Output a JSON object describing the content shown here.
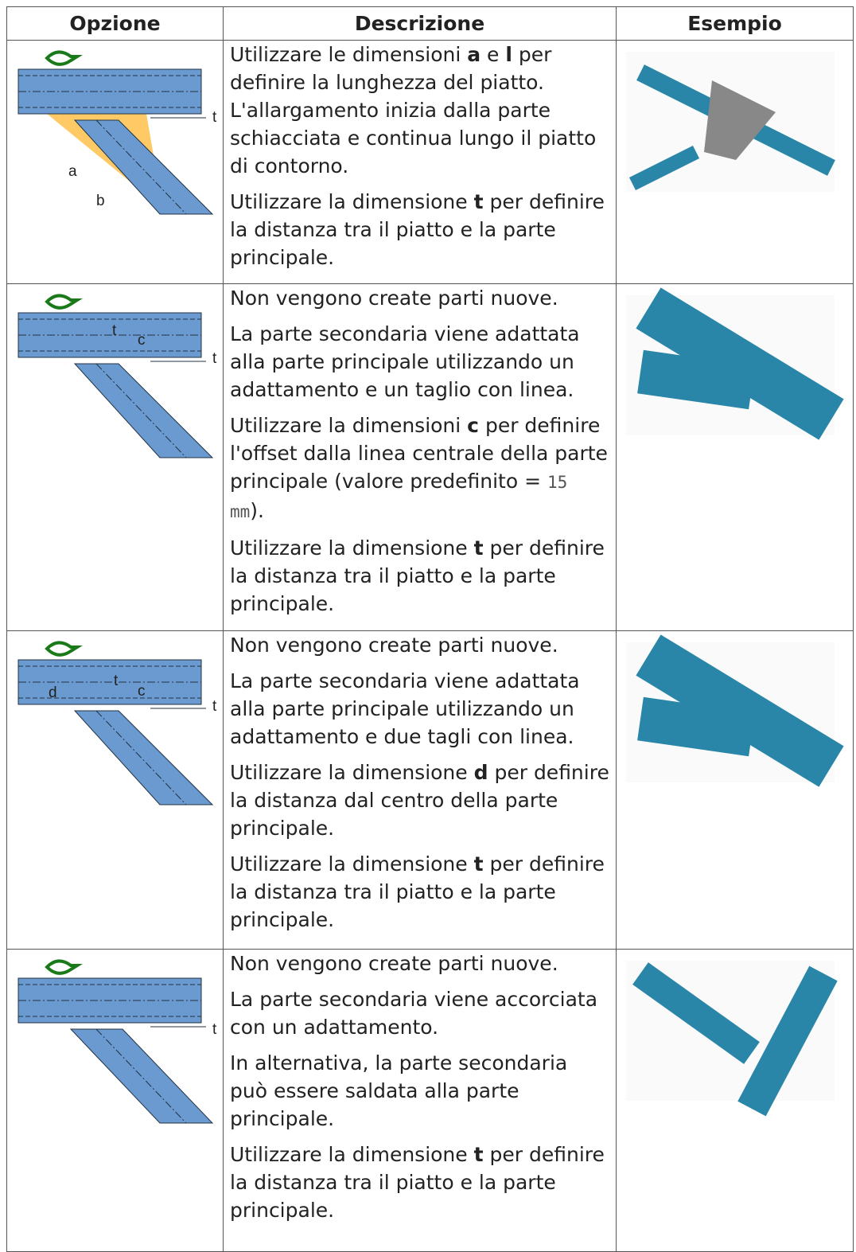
{
  "header": [
    "Opzione",
    "Descrizione",
    "Esempio"
  ],
  "rows": [
    {
      "option_labels": [
        "t",
        "a",
        "b"
      ],
      "description": [
        [
          {
            "text": "Utilizzare le dimensioni "
          },
          {
            "text": "a",
            "style": "bold"
          },
          {
            "text": " e "
          },
          {
            "text": "l",
            "style": "bold"
          },
          {
            "text": " per definire la lunghezza del piatto. L'allargamento inizia dalla parte schiacciata e continua lungo il piatto di contorno."
          }
        ],
        [
          {
            "text": "Utilizzare la dimensione "
          },
          {
            "text": "t",
            "style": "bold"
          },
          {
            "text": " per definire la distanza tra il piatto e la parte principale."
          }
        ]
      ]
    },
    {
      "option_labels": [
        "t",
        "c",
        "t"
      ],
      "description": [
        [
          {
            "text": "Non vengono create parti nuove."
          }
        ],
        [
          {
            "text": "La parte secondaria viene adattata alla parte principale utilizzando un adattamento e un taglio con linea."
          }
        ],
        [
          {
            "text": "Utilizzare la dimensioni "
          },
          {
            "text": "c",
            "style": "bold"
          },
          {
            "text": " per definire l'offset dalla linea centrale della parte principale (valore predefinito = "
          },
          {
            "text": "15 mm",
            "style": "code"
          },
          {
            "text": ")."
          }
        ],
        [
          {
            "text": "Utilizzare la dimensione "
          },
          {
            "text": "t",
            "style": "bold"
          },
          {
            "text": " per definire la distanza tra il piatto e la parte principale."
          }
        ]
      ]
    },
    {
      "option_labels": [
        "d",
        "t",
        "c",
        "t"
      ],
      "description": [
        [
          {
            "text": "Non vengono create parti nuove."
          }
        ],
        [
          {
            "text": "La parte secondaria viene adattata alla parte principale utilizzando un adattamento e due tagli con linea."
          }
        ],
        [
          {
            "text": "Utilizzare la dimensione "
          },
          {
            "text": "d",
            "style": "bold"
          },
          {
            "text": " per definire la distanza dal centro della parte principale."
          }
        ],
        [
          {
            "text": "Utilizzare la dimensione "
          },
          {
            "text": "t",
            "style": "bold"
          },
          {
            "text": " per definire la distanza tra il piatto e la parte principale."
          }
        ]
      ]
    },
    {
      "option_labels": [
        "t"
      ],
      "description": [
        [
          {
            "text": "Non vengono create parti nuove."
          }
        ],
        [
          {
            "text": "La parte secondaria viene accorciata con un adattamento."
          }
        ],
        [
          {
            "text": "In alternativa, la parte secondaria può essere saldata alla parte principale."
          }
        ],
        [
          {
            "text": "Utilizzare la dimensione "
          },
          {
            "text": "t",
            "style": "bold"
          },
          {
            "text": " per definire la distanza tra il piatto e la parte principale."
          }
        ]
      ]
    }
  ]
}
